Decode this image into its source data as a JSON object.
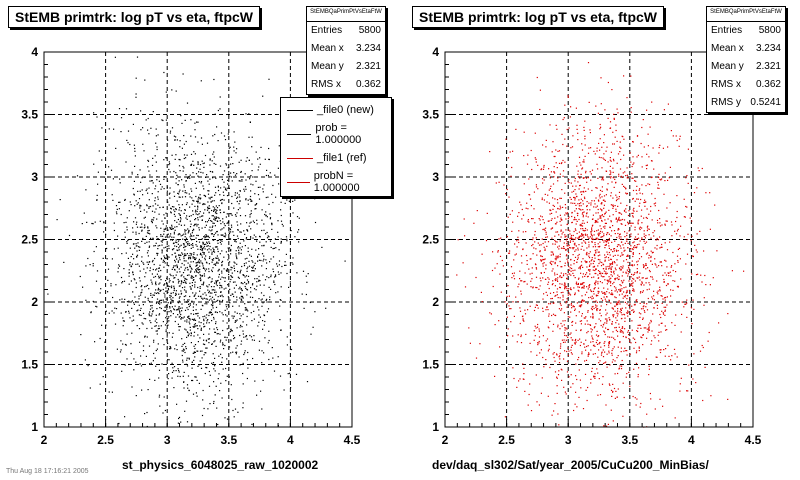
{
  "chart_data": [
    {
      "type": "scatter",
      "title": "StEMB primtrk: log pT vs eta, ftpcW",
      "xlabel": "st_physics_6048025_raw_1020002",
      "xlim": [
        2,
        4.5
      ],
      "ylim": [
        1,
        4
      ],
      "xticks": [
        "2",
        "2.5",
        "3",
        "3.5",
        "4",
        "4.5"
      ],
      "yticks": [
        "1",
        "1.5",
        "2",
        "2.5",
        "3",
        "3.5",
        "4"
      ],
      "grid": true,
      "marker_color": "#000000",
      "distribution": {
        "mean_x": 3.234,
        "mean_y": 2.321,
        "rms_x": 0.362,
        "rms_y": 0.5241,
        "entries": 5800
      },
      "stats": {
        "title": "StEMBQaPrimPtVsEtaFtW",
        "rows": [
          {
            "label": "Entries",
            "value": "5800"
          },
          {
            "label": "Mean x",
            "value": "3.234"
          },
          {
            "label": "Mean y",
            "value": "2.321"
          },
          {
            "label": "RMS x",
            "value": "0.362"
          }
        ]
      },
      "legend": {
        "placement": "top-right",
        "entries": [
          {
            "label": "_file0 (new)",
            "color": "#000000"
          },
          {
            "label": "prob = 1.000000",
            "color": "#000000"
          },
          {
            "label": "_file1 (ref)",
            "color": "#cc0000"
          },
          {
            "label": "probN = 1.000000",
            "color": "#cc0000"
          }
        ]
      }
    },
    {
      "type": "scatter",
      "title": "StEMB primtrk: log pT vs eta, ftpcW",
      "xlabel": "dev/daq_sl302/Sat/year_2005/CuCu200_MinBias/",
      "xlim": [
        2,
        4.5
      ],
      "ylim": [
        1,
        4
      ],
      "xticks": [
        "2",
        "2.5",
        "3",
        "3.5",
        "4",
        "4.5"
      ],
      "yticks": [
        "1",
        "1.5",
        "2",
        "2.5",
        "3",
        "3.5",
        "4"
      ],
      "grid": true,
      "marker_color": "#dd0000",
      "distribution": {
        "mean_x": 3.234,
        "mean_y": 2.321,
        "rms_x": 0.362,
        "rms_y": 0.5241,
        "entries": 5800
      },
      "stats": {
        "title": "StEMBQaPrimPtVsEtaFtW",
        "rows": [
          {
            "label": "Entries",
            "value": "5800"
          },
          {
            "label": "Mean x",
            "value": "3.234"
          },
          {
            "label": "Mean y",
            "value": "2.321"
          },
          {
            "label": "RMS x",
            "value": "0.362"
          },
          {
            "label": "RMS y",
            "value": "0.5241"
          }
        ]
      }
    }
  ],
  "footer_text": "Thu Aug 18 17:16:21 2005"
}
